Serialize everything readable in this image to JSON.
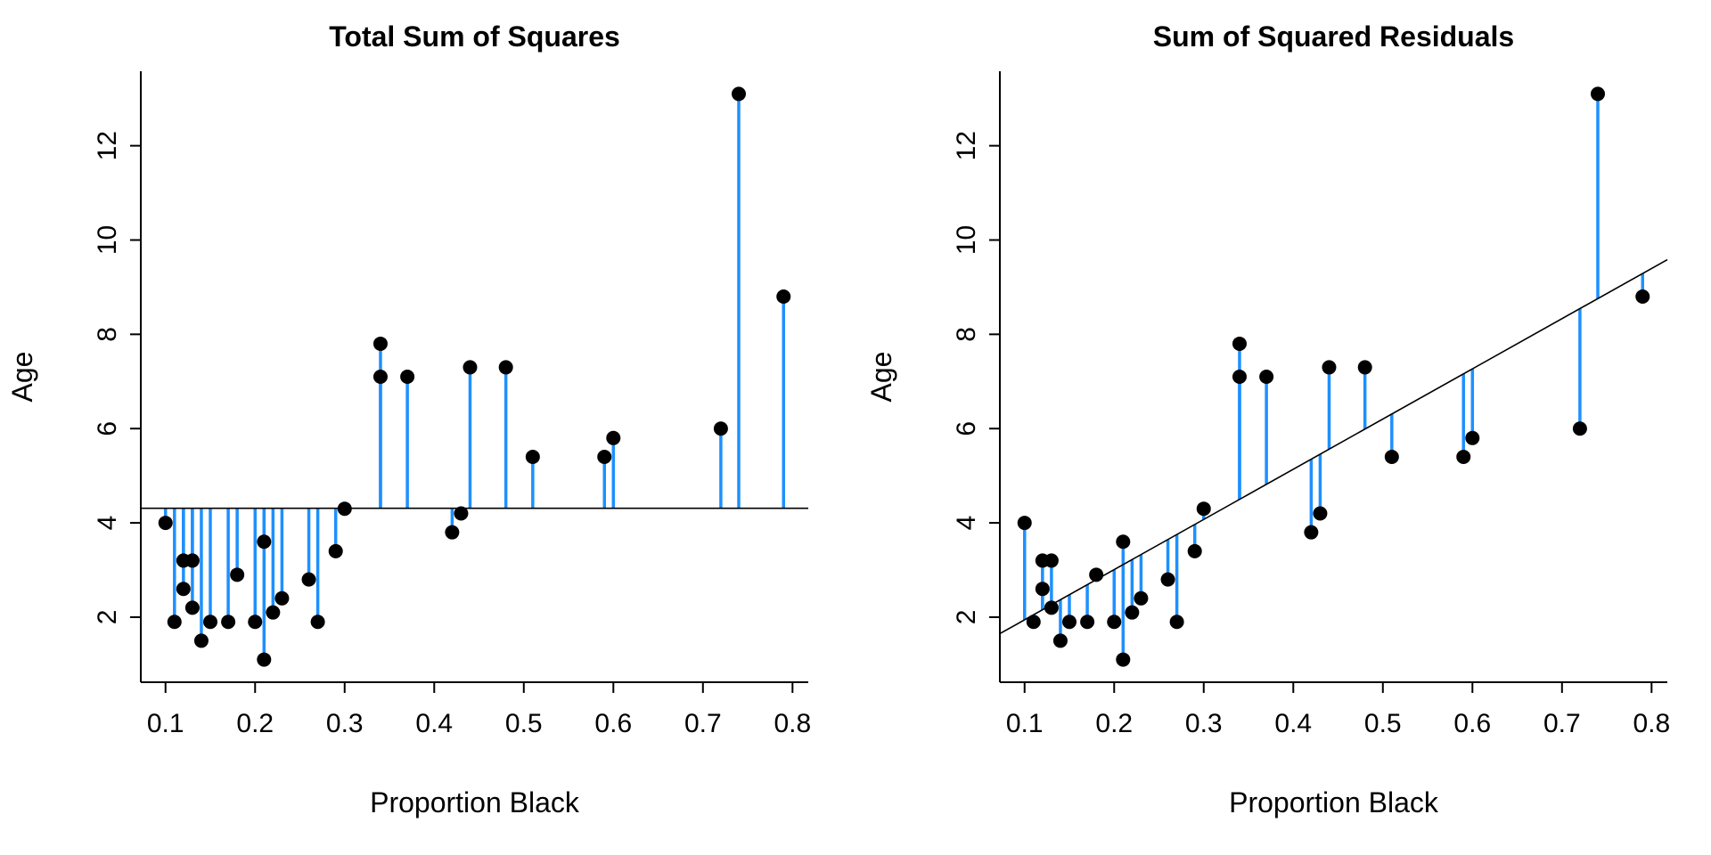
{
  "chart_data": [
    {
      "type": "scatter",
      "title": "Total Sum of Squares",
      "xlabel": "Proportion Black",
      "ylabel": "Age",
      "xlim": [
        0.0724,
        0.8176
      ],
      "ylim": [
        0.62,
        13.58
      ],
      "xticks": [
        0.1,
        0.2,
        0.3,
        0.4,
        0.5,
        0.6,
        0.7,
        0.8
      ],
      "yticks": [
        2,
        4,
        6,
        8,
        10,
        12
      ],
      "reference_line": "mean",
      "segments_to": "mean",
      "grid": false
    },
    {
      "type": "scatter",
      "title": "Sum of Squared Residuals",
      "xlabel": "Proportion Black",
      "ylabel": "Age",
      "xlim": [
        0.0724,
        0.8176
      ],
      "ylim": [
        0.62,
        13.58
      ],
      "xticks": [
        0.1,
        0.2,
        0.3,
        0.4,
        0.5,
        0.6,
        0.7,
        0.8
      ],
      "yticks": [
        2,
        4,
        6,
        8,
        10,
        12
      ],
      "reference_line": "least-squares fit",
      "segments_to": "fit",
      "grid": false
    }
  ],
  "points": {
    "x": [
      0.1,
      0.11,
      0.12,
      0.12,
      0.13,
      0.13,
      0.14,
      0.15,
      0.17,
      0.18,
      0.2,
      0.21,
      0.21,
      0.22,
      0.23,
      0.26,
      0.27,
      0.29,
      0.3,
      0.34,
      0.34,
      0.37,
      0.42,
      0.43,
      0.44,
      0.48,
      0.51,
      0.59,
      0.6,
      0.72,
      0.74,
      0.79
    ],
    "y": [
      4.0,
      1.9,
      3.2,
      2.6,
      3.2,
      2.2,
      1.5,
      1.9,
      1.9,
      2.9,
      1.9,
      3.6,
      1.1,
      2.1,
      2.4,
      2.8,
      1.9,
      3.4,
      4.3,
      7.8,
      7.1,
      7.1,
      3.8,
      4.2,
      7.3,
      7.3,
      5.4,
      5.4,
      5.8,
      6.0,
      13.1,
      8.8
    ]
  },
  "colors": {
    "segment": "#1e90ff",
    "point": "#000000",
    "line": "#000000"
  }
}
